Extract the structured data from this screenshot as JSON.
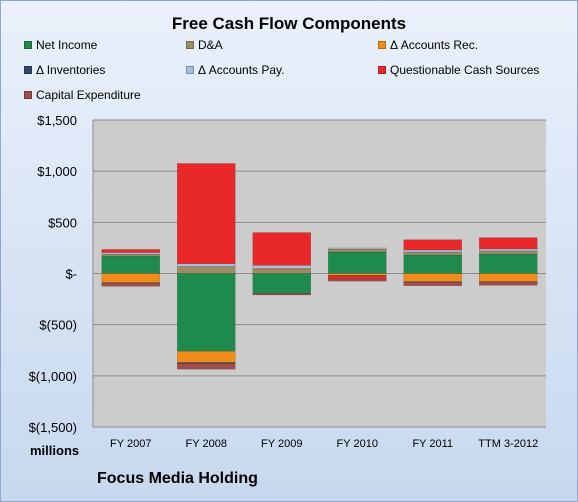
{
  "chart_data": {
    "type": "bar",
    "stacked": true,
    "title": "Free Cash Flow Components",
    "units_label": "millions",
    "company": "Focus Media Holding",
    "categories": [
      "FY 2007",
      "FY 2008",
      "FY 2009",
      "FY 2010",
      "FY 2011",
      "TTM 3-2012"
    ],
    "ylim": [
      -1500,
      1500
    ],
    "yticks": [
      1500,
      1000,
      500,
      0,
      -500,
      -1000,
      -1500
    ],
    "ytick_labels": [
      "$1,500",
      "$1,000",
      "$500",
      "$-",
      "$(500)",
      "$(1,000)",
      "$(1,500)"
    ],
    "grid": true,
    "legend_position": "top",
    "series": [
      {
        "name": "Net Income",
        "color": "#1e8a4c",
        "values": [
          170,
          -760,
          -195,
          210,
          180,
          190
        ]
      },
      {
        "name": "D&A",
        "color": "#9a8d66",
        "values": [
          20,
          70,
          40,
          30,
          30,
          30
        ]
      },
      {
        "name": "Δ Accounts Rec.",
        "color": "#f08c1a",
        "values": [
          -90,
          -110,
          10,
          -20,
          -80,
          -80
        ]
      },
      {
        "name": "Δ Inventories",
        "color": "#2e4a66",
        "values": [
          -5,
          -10,
          0,
          -5,
          -5,
          -5
        ]
      },
      {
        "name": "Δ Accounts Pay.",
        "color": "#a6bfe0",
        "values": [
          15,
          25,
          30,
          10,
          20,
          20
        ]
      },
      {
        "name": "Questionable Cash Sources",
        "color": "#e82828",
        "values": [
          30,
          980,
          320,
          -30,
          100,
          110
        ]
      },
      {
        "name": "Capital Expenditure",
        "color": "#a24b4b",
        "values": [
          -30,
          -55,
          -15,
          -20,
          -35,
          -30
        ]
      }
    ]
  }
}
